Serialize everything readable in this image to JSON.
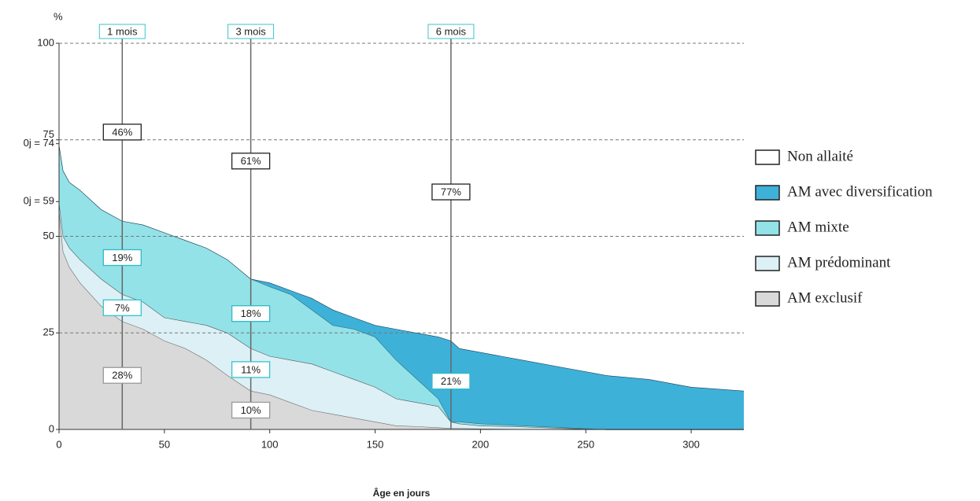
{
  "chart_data": {
    "type": "stacked_area",
    "y_label": "%",
    "x_label": "Âge en jours",
    "x": [
      0,
      2,
      5,
      10,
      20,
      30,
      40,
      50,
      60,
      70,
      80,
      91,
      100,
      110,
      120,
      130,
      140,
      150,
      160,
      170,
      180,
      186,
      190,
      200,
      220,
      240,
      260,
      280,
      300,
      325
    ],
    "series": [
      {
        "name": "AM exclusif",
        "color": "#d9d9d9",
        "line_color": "#6f6f6f",
        "label_color": "#9a9a9a",
        "values": [
          57,
          46,
          42,
          38,
          32,
          28,
          26,
          23,
          21,
          18,
          14,
          10,
          9,
          7,
          5,
          4,
          3,
          2,
          1,
          0.8,
          0.5,
          0.3,
          0.3,
          0.2,
          0.1,
          0,
          0,
          0,
          0,
          0
        ]
      },
      {
        "name": "AM prédominant",
        "color": "#dcf0f6",
        "line_color": "#555555",
        "label_color": "#33c3cf",
        "values": [
          2,
          4,
          5,
          6,
          7,
          7,
          7,
          6,
          7,
          9,
          11,
          11,
          10,
          11,
          12,
          11,
          10,
          9,
          7,
          6.2,
          5.5,
          1.7,
          1.2,
          0.8,
          0.6,
          0.3,
          0,
          0,
          0,
          0
        ]
      },
      {
        "name": "AM mixte",
        "color": "#93e2e8",
        "line_color": "#2f6f7a",
        "label_color": "#2fbac6",
        "values": [
          15,
          17,
          17,
          18,
          18,
          19,
          20,
          22,
          21,
          20,
          19,
          18,
          18,
          17,
          14,
          12,
          13,
          13,
          10,
          6,
          2,
          0,
          0.5,
          0.5,
          0.3,
          0.2,
          0,
          0,
          0,
          0
        ]
      },
      {
        "name": "AM avec diversification",
        "color": "#3eb1d9",
        "line_color": "#1d3f5a",
        "label_color": "#2fbac6",
        "values": [
          0,
          0,
          0,
          0,
          0,
          0,
          0,
          0,
          0,
          0,
          0,
          0,
          1,
          1,
          3,
          4,
          3,
          3,
          8,
          12,
          16,
          21,
          19,
          18.5,
          17,
          15.5,
          14,
          13,
          11,
          10
        ]
      },
      {
        "name": "Non allaité",
        "color": "#ffffff",
        "line_color": "#222222",
        "label_color": "#222222",
        "values": [
          26,
          33,
          36,
          38,
          43,
          46,
          47,
          49,
          51,
          53,
          56,
          61,
          62,
          64,
          66,
          69,
          71,
          73,
          74,
          75,
          76,
          77,
          79,
          80,
          82,
          84,
          86,
          87,
          89,
          90
        ]
      }
    ],
    "legend_order": [
      4,
      3,
      2,
      1,
      0
    ],
    "annotations": [
      {
        "x": 30,
        "label": "1 mois",
        "values": [
          28,
          7,
          19,
          null,
          46
        ],
        "value_labels": [
          "28%",
          "7%",
          "19%",
          null,
          "46%"
        ]
      },
      {
        "x": 91,
        "label": "3 mois",
        "values": [
          10,
          11,
          18,
          null,
          61
        ],
        "value_labels": [
          "10%",
          "11%",
          "18%",
          null,
          "61%"
        ]
      },
      {
        "x": 186,
        "label": "6 mois",
        "values": [
          null,
          null,
          null,
          21,
          77
        ],
        "value_labels": [
          null,
          null,
          null,
          "21%",
          "77%"
        ]
      }
    ],
    "xlim": [
      0,
      325
    ],
    "xticks": [
      0,
      50,
      100,
      150,
      200,
      250,
      300
    ],
    "ylim": [
      0,
      100
    ],
    "yticks": [
      0,
      25,
      50,
      {
        "value": 59,
        "label": "0j = 59"
      },
      {
        "value": 74,
        "label": "0j = 74"
      },
      75,
      100
    ],
    "grid": true
  }
}
